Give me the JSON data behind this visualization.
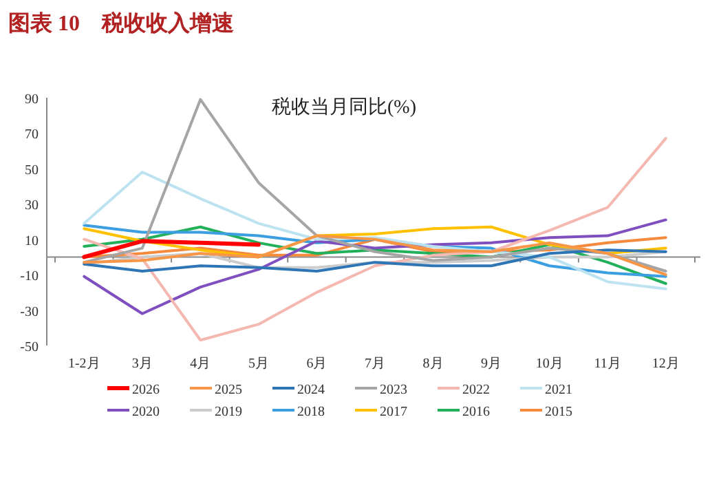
{
  "chart_data": {
    "type": "line",
    "title": "图表 10　税收收入增速",
    "subtitle": "税收当月同比(%)",
    "categories": [
      "1-2月",
      "3月",
      "4月",
      "5月",
      "6月",
      "7月",
      "8月",
      "9月",
      "10月",
      "11月",
      "12月"
    ],
    "ylim": [
      -50,
      90
    ],
    "yticks": [
      -50,
      -30,
      -10,
      10,
      30,
      50,
      70,
      90
    ],
    "grid": false,
    "legend": "bottom",
    "marker": "none",
    "line_style": "solid",
    "series": [
      {
        "name": "2026",
        "color": "#ff0000",
        "values": [
          0,
          9,
          8,
          7,
          null,
          null,
          null,
          null,
          null,
          null,
          null
        ]
      },
      {
        "name": "2025",
        "color": "#f79646",
        "values": [
          -3,
          -2,
          2,
          0,
          12,
          10,
          4,
          3,
          8,
          2,
          -10
        ]
      },
      {
        "name": "2024",
        "color": "#2e75b6",
        "values": [
          -4,
          -8,
          -5,
          -6,
          -8,
          -3,
          -5,
          -5,
          2,
          4,
          3
        ]
      },
      {
        "name": "2023",
        "color": "#a5a5a5",
        "values": [
          -3,
          5,
          89,
          42,
          12,
          3,
          -2,
          0,
          5,
          2,
          -8
        ]
      },
      {
        "name": "2022",
        "color": "#f4b8b0",
        "values": [
          10,
          -1,
          -47,
          -38,
          -20,
          -5,
          1,
          3,
          15,
          28,
          67
        ]
      },
      {
        "name": "2021",
        "color": "#bde3f0",
        "values": [
          19,
          48,
          33,
          19,
          10,
          11,
          6,
          3,
          0,
          -14,
          -18
        ]
      },
      {
        "name": "2020",
        "color": "#7f4fbf",
        "values": [
          -11,
          -32,
          -17,
          -7,
          9,
          5,
          7,
          8,
          11,
          12,
          21
        ]
      },
      {
        "name": "2019",
        "color": "#cccccc",
        "values": [
          -4,
          0,
          2,
          -6,
          -6,
          -3,
          -3,
          -2,
          0,
          0,
          3
        ]
      },
      {
        "name": "2018",
        "color": "#3a9ee0",
        "values": [
          18,
          14,
          14,
          12,
          8,
          10,
          6,
          5,
          -5,
          -9,
          -11
        ]
      },
      {
        "name": "2017",
        "color": "#ffc000",
        "values": [
          16,
          9,
          4,
          0,
          12,
          13,
          16,
          17,
          7,
          2,
          5
        ]
      },
      {
        "name": "2016",
        "color": "#22b05a",
        "values": [
          6,
          10,
          17,
          8,
          2,
          4,
          2,
          0,
          7,
          -3,
          -15
        ]
      },
      {
        "name": "2015",
        "color": "#f58a3c",
        "values": [
          0,
          2,
          5,
          1,
          1,
          10,
          3,
          3,
          4,
          8,
          11
        ]
      }
    ]
  }
}
